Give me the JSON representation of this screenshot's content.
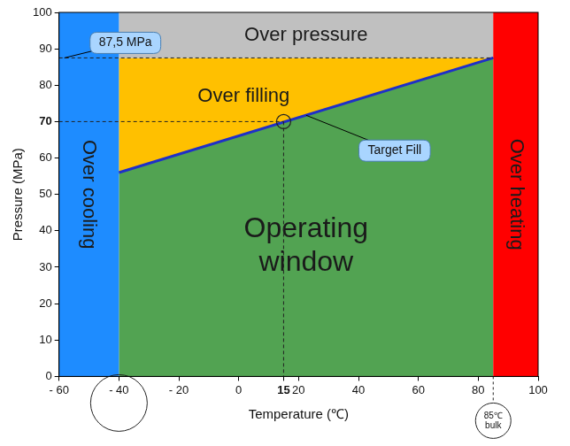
{
  "chart_data": {
    "type": "region",
    "x_label": "Temperature (℃)",
    "y_label": "Pressure (MPa)",
    "xlim": [
      -60,
      100
    ],
    "ylim": [
      0,
      100
    ],
    "xticks": [
      {
        "value": -60,
        "label": "- 60"
      },
      {
        "value": -40,
        "label": "- 40"
      },
      {
        "value": -20,
        "label": "- 20"
      },
      0,
      15,
      20,
      40,
      60,
      80,
      100
    ],
    "yticks": [
      0,
      10,
      20,
      30,
      40,
      50,
      60,
      70,
      80,
      90,
      100
    ],
    "grid": false,
    "regions": [
      {
        "name": "Operating window",
        "color": "#52a352",
        "polygon": [
          [
            -40,
            0
          ],
          [
            85,
            0
          ],
          [
            85,
            87.5
          ],
          [
            -40,
            56
          ]
        ]
      },
      {
        "name": "Over filling",
        "color": "#ffc000",
        "polygon": [
          [
            -40,
            56
          ],
          [
            85,
            87.5
          ],
          [
            -40,
            87.5
          ]
        ]
      },
      {
        "name": "Over pressure",
        "color": "#c0c0c0",
        "polygon": [
          [
            -40,
            87.5
          ],
          [
            85,
            87.5
          ],
          [
            85,
            100
          ],
          [
            -40,
            100
          ]
        ]
      },
      {
        "name": "Over cooling",
        "color": "#1e8cff",
        "polygon": [
          [
            -60,
            0
          ],
          [
            -40,
            0
          ],
          [
            -40,
            100
          ],
          [
            -60,
            100
          ]
        ]
      },
      {
        "name": "Over heating",
        "color": "#ff0000",
        "polygon": [
          [
            85,
            0
          ],
          [
            100,
            0
          ],
          [
            100,
            100
          ],
          [
            85,
            100
          ]
        ]
      }
    ],
    "target_line": {
      "name": "Target Fill",
      "color": "#1f2fc8",
      "x": [
        -40,
        85
      ],
      "y": [
        56,
        87.5
      ]
    },
    "target": {
      "x": 15,
      "y": 70
    },
    "annotations": [
      {
        "text": "87,5 MPa",
        "x": -60,
        "y": 87.5
      },
      {
        "text": "85℃ bulk",
        "x": 85,
        "y": 0
      }
    ],
    "circled_x_ticks": [
      -40
    ]
  }
}
